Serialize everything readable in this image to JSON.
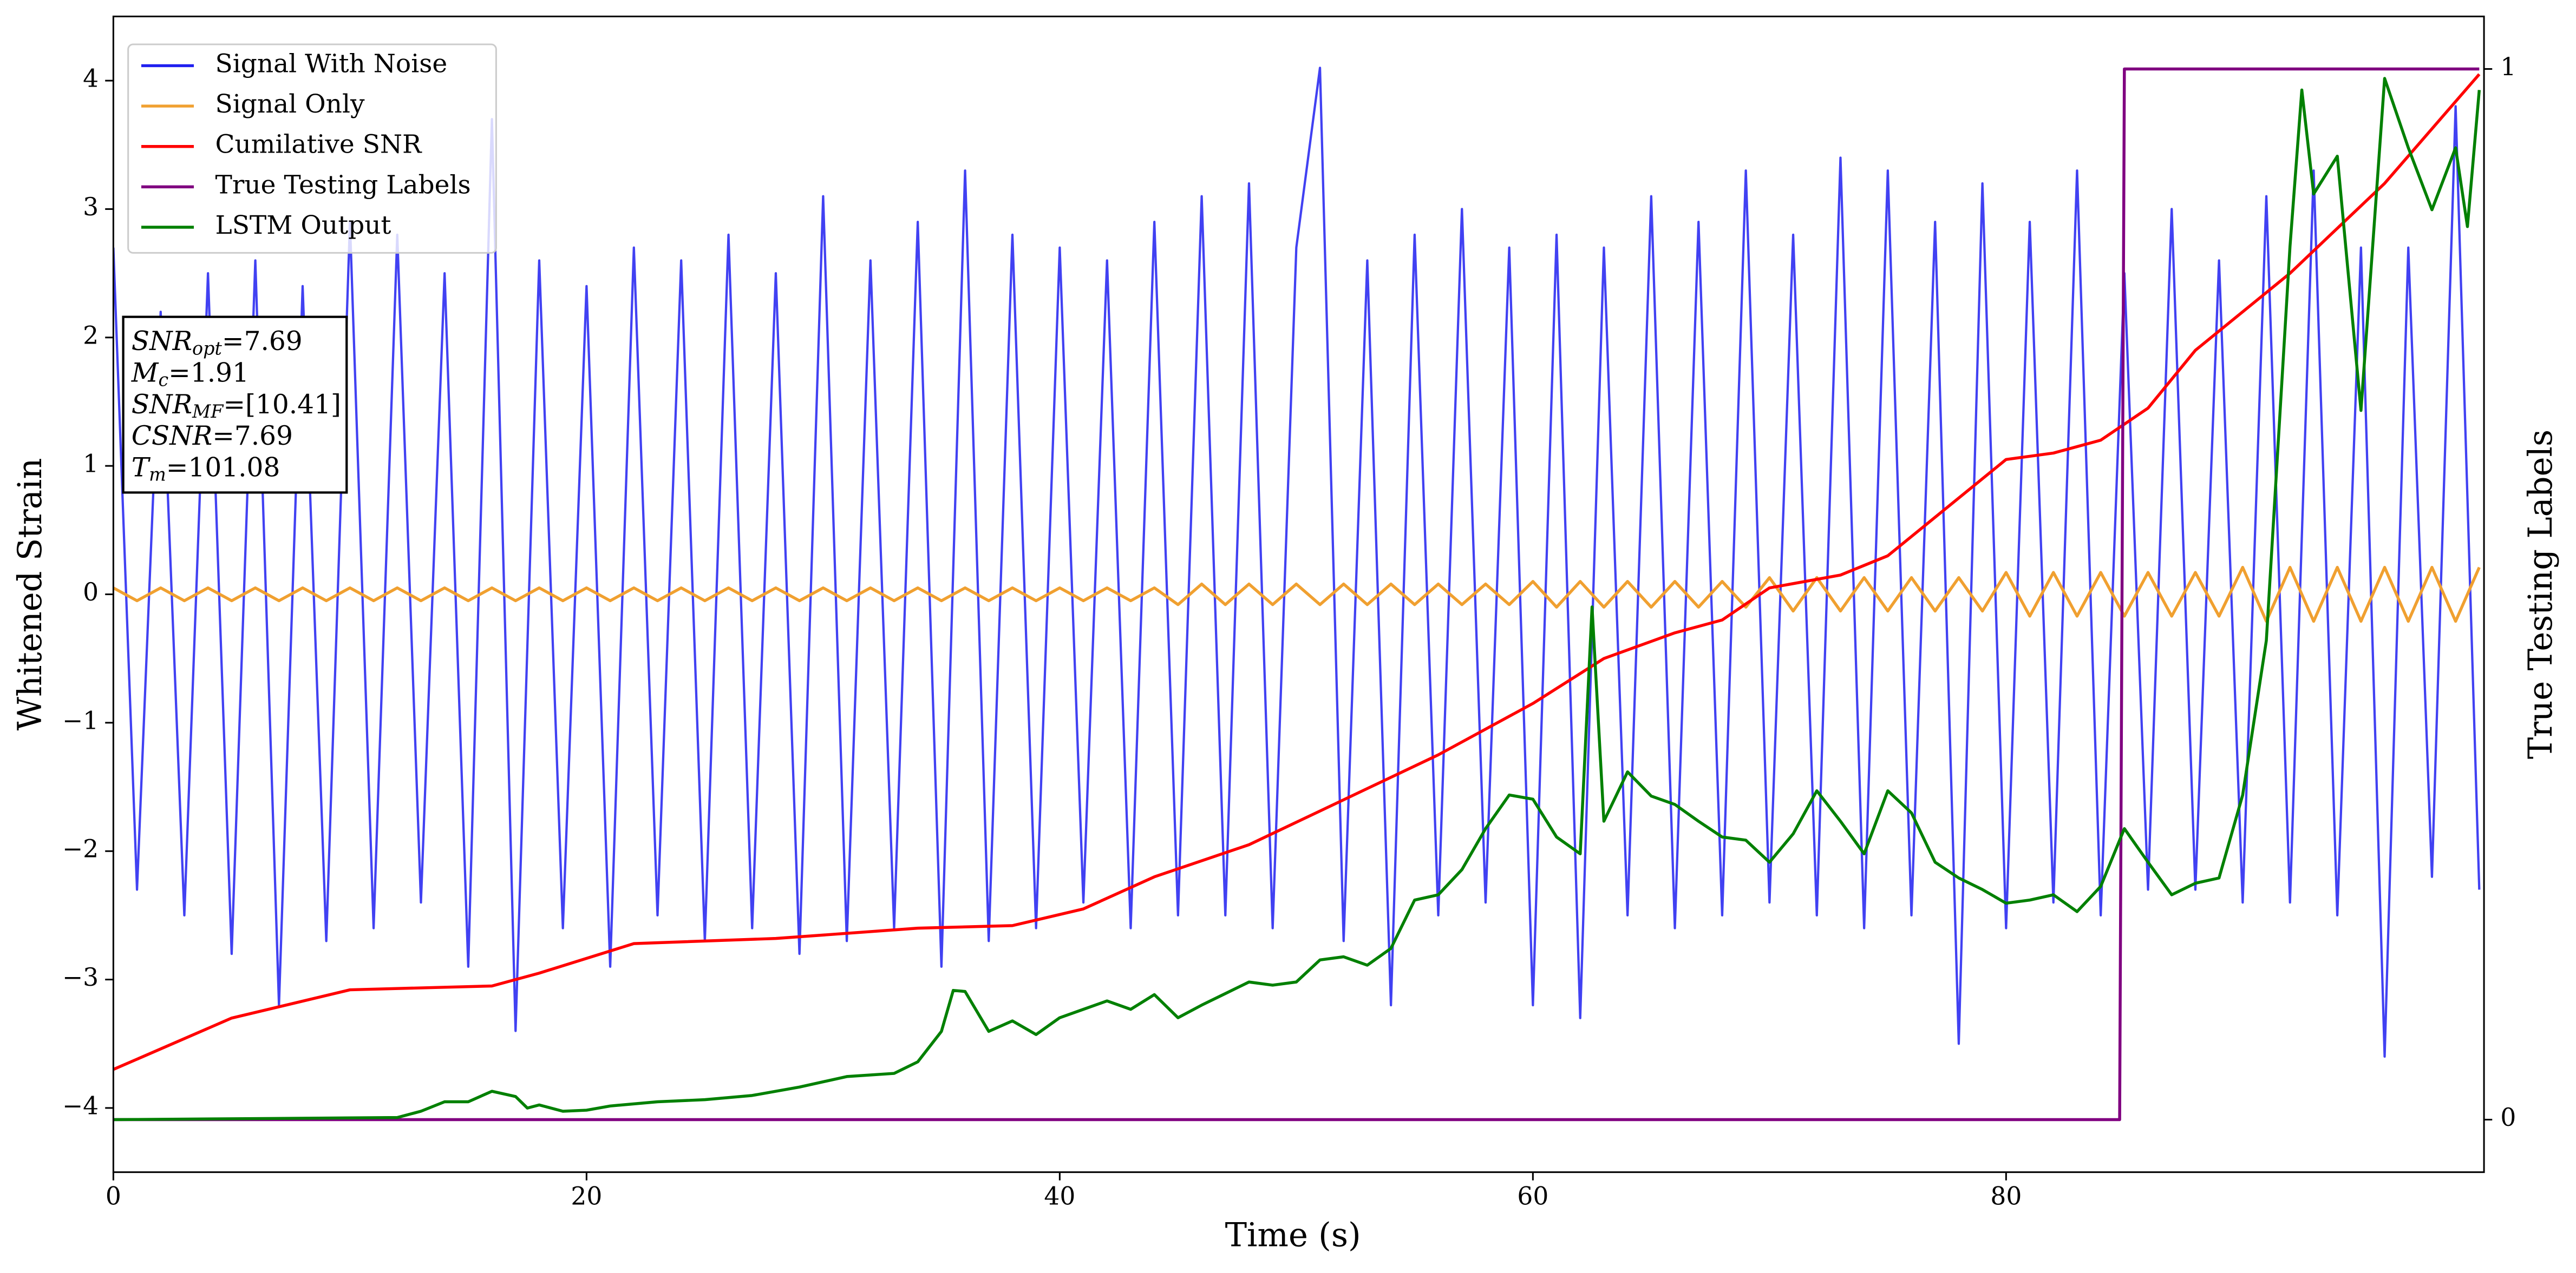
{
  "chart_data": {
    "type": "line",
    "xlabel": "Time (s)",
    "ylabel": "Whitened Strain",
    "y2label": "True Testing Labels",
    "xlim": [
      0,
      100.2
    ],
    "xticks": [
      0,
      20,
      40,
      60,
      80
    ],
    "ylim": [
      -4.5,
      4.5
    ],
    "yticks": [
      -4,
      -3,
      -2,
      -1,
      0,
      1,
      2,
      3,
      4
    ],
    "y2lim": [
      -0.05,
      1.05
    ],
    "y2ticks": [
      0,
      1
    ],
    "legend": "upper left",
    "annotation": [
      {
        "main": "SNR",
        "sub": "opt",
        "rest": "=7.69"
      },
      {
        "main": "M",
        "sub": "c",
        "rest": "=1.91"
      },
      {
        "main": "SNR",
        "sub": "MF",
        "rest": "=[10.41]"
      },
      {
        "main": "CSNR",
        "rest": "=7.69"
      },
      {
        "main": "T",
        "sub": "m",
        "rest": "=101.08"
      }
    ],
    "series": [
      {
        "name": "Signal With Noise",
        "color": "#2020f0",
        "x": [
          0,
          1,
          2,
          3,
          4,
          5,
          6,
          7,
          8,
          9,
          10,
          11,
          12,
          13,
          14,
          15,
          16,
          17,
          18,
          19,
          20,
          21,
          22,
          23,
          24,
          25,
          26,
          27,
          28,
          29,
          30,
          31,
          32,
          33,
          34,
          35,
          36,
          37,
          38,
          39,
          40,
          41,
          42,
          43,
          44,
          45,
          46,
          47,
          48,
          49,
          50,
          51,
          52,
          53,
          54,
          55,
          56,
          57,
          58,
          59,
          60,
          61,
          62,
          63,
          64,
          65,
          66,
          67,
          68,
          69,
          70,
          71,
          72,
          73,
          74,
          75,
          76,
          77,
          78,
          79,
          80,
          81,
          82,
          83,
          84,
          85,
          86,
          87,
          88,
          89,
          90,
          91,
          92,
          93,
          94,
          95,
          96,
          97,
          98,
          99,
          100
        ],
        "values": [
          2.7,
          -2.3,
          2.2,
          -2.5,
          2.5,
          -2.8,
          2.6,
          -3.2,
          2.4,
          -2.7,
          2.9,
          -2.6,
          2.8,
          -2.4,
          2.5,
          -2.9,
          3.7,
          -3.4,
          2.6,
          -2.6,
          2.4,
          -2.9,
          2.7,
          -2.5,
          2.6,
          -2.7,
          2.8,
          -2.6,
          2.5,
          -2.8,
          3.1,
          -2.7,
          2.6,
          -2.6,
          2.9,
          -2.9,
          3.3,
          -2.7,
          2.8,
          -2.6,
          2.7,
          -2.4,
          2.6,
          -2.6,
          2.9,
          -2.5,
          3.1,
          -2.5,
          3.2,
          -2.6,
          2.7,
          4.1,
          -2.7,
          2.6,
          -3.2,
          2.8,
          -2.5,
          3.0,
          -2.4,
          2.7,
          -3.2,
          2.8,
          -3.3,
          2.7,
          -2.5,
          3.1,
          -2.6,
          2.9,
          -2.5,
          3.3,
          -2.4,
          2.8,
          -2.5,
          3.4,
          -2.6,
          3.3,
          -2.5,
          2.9,
          -3.5,
          3.2,
          -2.6,
          2.9,
          -2.4,
          3.3,
          -2.5,
          2.5,
          -2.3,
          3.0,
          -2.3,
          2.6,
          -2.4,
          3.1,
          -2.4,
          3.3,
          -2.5,
          2.7,
          -3.6,
          2.7,
          -2.2,
          3.8,
          -2.3
        ]
      },
      {
        "name": "Signal Only",
        "color": "#f0a030",
        "x": [
          0,
          1,
          2,
          3,
          4,
          5,
          6,
          7,
          8,
          9,
          10,
          11,
          12,
          13,
          14,
          15,
          16,
          17,
          18,
          19,
          20,
          21,
          22,
          23,
          24,
          25,
          26,
          27,
          28,
          29,
          30,
          31,
          32,
          33,
          34,
          35,
          36,
          37,
          38,
          39,
          40,
          41,
          42,
          43,
          44,
          45,
          46,
          47,
          48,
          49,
          50,
          51,
          52,
          53,
          54,
          55,
          56,
          57,
          58,
          59,
          60,
          61,
          62,
          63,
          64,
          65,
          66,
          67,
          68,
          69,
          70,
          71,
          72,
          73,
          74,
          75,
          76,
          77,
          78,
          79,
          80,
          81,
          82,
          83,
          84,
          85,
          86,
          87,
          88,
          89,
          90,
          91,
          92,
          93,
          94,
          95,
          96,
          97,
          98,
          99,
          100
        ],
        "values": [
          0.05,
          -0.05,
          0.05,
          -0.05,
          0.05,
          -0.05,
          0.05,
          -0.05,
          0.05,
          -0.05,
          0.05,
          -0.05,
          0.05,
          -0.05,
          0.05,
          -0.05,
          0.05,
          -0.05,
          0.05,
          -0.05,
          0.05,
          -0.05,
          0.05,
          -0.05,
          0.05,
          -0.05,
          0.05,
          -0.05,
          0.05,
          -0.05,
          0.05,
          -0.05,
          0.05,
          -0.05,
          0.05,
          -0.05,
          0.05,
          -0.05,
          0.05,
          -0.05,
          0.05,
          -0.05,
          0.05,
          -0.05,
          0.05,
          -0.08,
          0.08,
          -0.08,
          0.08,
          -0.08,
          0.08,
          -0.08,
          0.08,
          -0.08,
          0.08,
          -0.08,
          0.08,
          -0.08,
          0.08,
          -0.08,
          0.1,
          -0.1,
          0.1,
          -0.1,
          0.1,
          -0.1,
          0.1,
          -0.1,
          0.1,
          -0.1,
          0.13,
          -0.13,
          0.13,
          -0.13,
          0.13,
          -0.13,
          0.13,
          -0.13,
          0.13,
          -0.13,
          0.17,
          -0.17,
          0.17,
          -0.17,
          0.17,
          -0.17,
          0.17,
          -0.17,
          0.17,
          -0.17,
          0.21,
          -0.21,
          0.21,
          -0.21,
          0.21,
          -0.21,
          0.21,
          -0.21,
          0.21,
          -0.21,
          0.21
        ]
      },
      {
        "name": "Cumilative SNR",
        "color": "#ff0000",
        "x": [
          0,
          5,
          10,
          16,
          18,
          22,
          28,
          34,
          38,
          41,
          44,
          48,
          52,
          56,
          60,
          63,
          66,
          68,
          70,
          73,
          75,
          78,
          80,
          82,
          84,
          86,
          88,
          92,
          96,
          100
        ],
        "values": [
          -3.7,
          -3.3,
          -3.08,
          -3.05,
          -2.95,
          -2.72,
          -2.68,
          -2.6,
          -2.58,
          -2.45,
          -2.2,
          -1.95,
          -1.6,
          -1.25,
          -0.85,
          -0.5,
          -0.3,
          -0.2,
          0.05,
          0.15,
          0.3,
          0.75,
          1.05,
          1.1,
          1.2,
          1.45,
          1.9,
          2.5,
          3.2,
          4.05
        ]
      },
      {
        "name": "True Testing Labels",
        "color": "#800080",
        "axis": "y2",
        "x": [
          0,
          84.8,
          85,
          100
        ],
        "values": [
          0,
          0,
          1,
          1
        ]
      },
      {
        "name": "LSTM Output",
        "color": "#008000",
        "axis": "y2",
        "x": [
          0,
          12,
          13,
          14,
          15,
          16,
          17,
          17.5,
          18,
          19,
          20,
          21,
          23,
          25,
          27,
          29,
          31,
          33,
          34,
          35,
          35.5,
          36,
          37,
          38,
          39,
          40,
          41,
          42,
          43,
          44,
          45,
          46,
          47,
          48,
          49,
          50,
          51,
          52,
          53,
          54,
          55,
          56,
          57,
          58,
          59,
          60,
          61,
          62,
          62.5,
          63,
          64,
          65,
          66,
          67,
          68,
          69,
          70,
          71,
          72,
          73,
          74,
          75,
          76,
          77,
          78,
          79,
          80,
          81,
          82,
          83,
          84,
          85,
          86,
          87,
          88,
          89,
          90,
          91,
          92,
          92.5,
          93,
          94,
          95,
          96,
          97,
          98,
          99,
          99.5,
          100
        ],
        "values": [
          0,
          0.002,
          0.008,
          0.017,
          0.017,
          0.027,
          0.022,
          0.011,
          0.014,
          0.008,
          0.009,
          0.013,
          0.017,
          0.019,
          0.023,
          0.031,
          0.041,
          0.044,
          0.055,
          0.084,
          0.123,
          0.122,
          0.084,
          0.094,
          0.081,
          0.097,
          0.105,
          0.113,
          0.105,
          0.119,
          0.097,
          0.109,
          0.12,
          0.131,
          0.128,
          0.131,
          0.152,
          0.155,
          0.147,
          0.163,
          0.209,
          0.214,
          0.238,
          0.277,
          0.309,
          0.305,
          0.269,
          0.253,
          0.488,
          0.284,
          0.331,
          0.308,
          0.3,
          0.284,
          0.269,
          0.266,
          0.245,
          0.272,
          0.313,
          0.284,
          0.253,
          0.313,
          0.292,
          0.245,
          0.23,
          0.219,
          0.206,
          0.209,
          0.214,
          0.198,
          0.222,
          0.277,
          0.245,
          0.214,
          0.225,
          0.23,
          0.309,
          0.456,
          0.831,
          0.98,
          0.881,
          0.917,
          0.675,
          0.991,
          0.925,
          0.866,
          0.925,
          0.85,
          0.98
        ]
      }
    ]
  }
}
